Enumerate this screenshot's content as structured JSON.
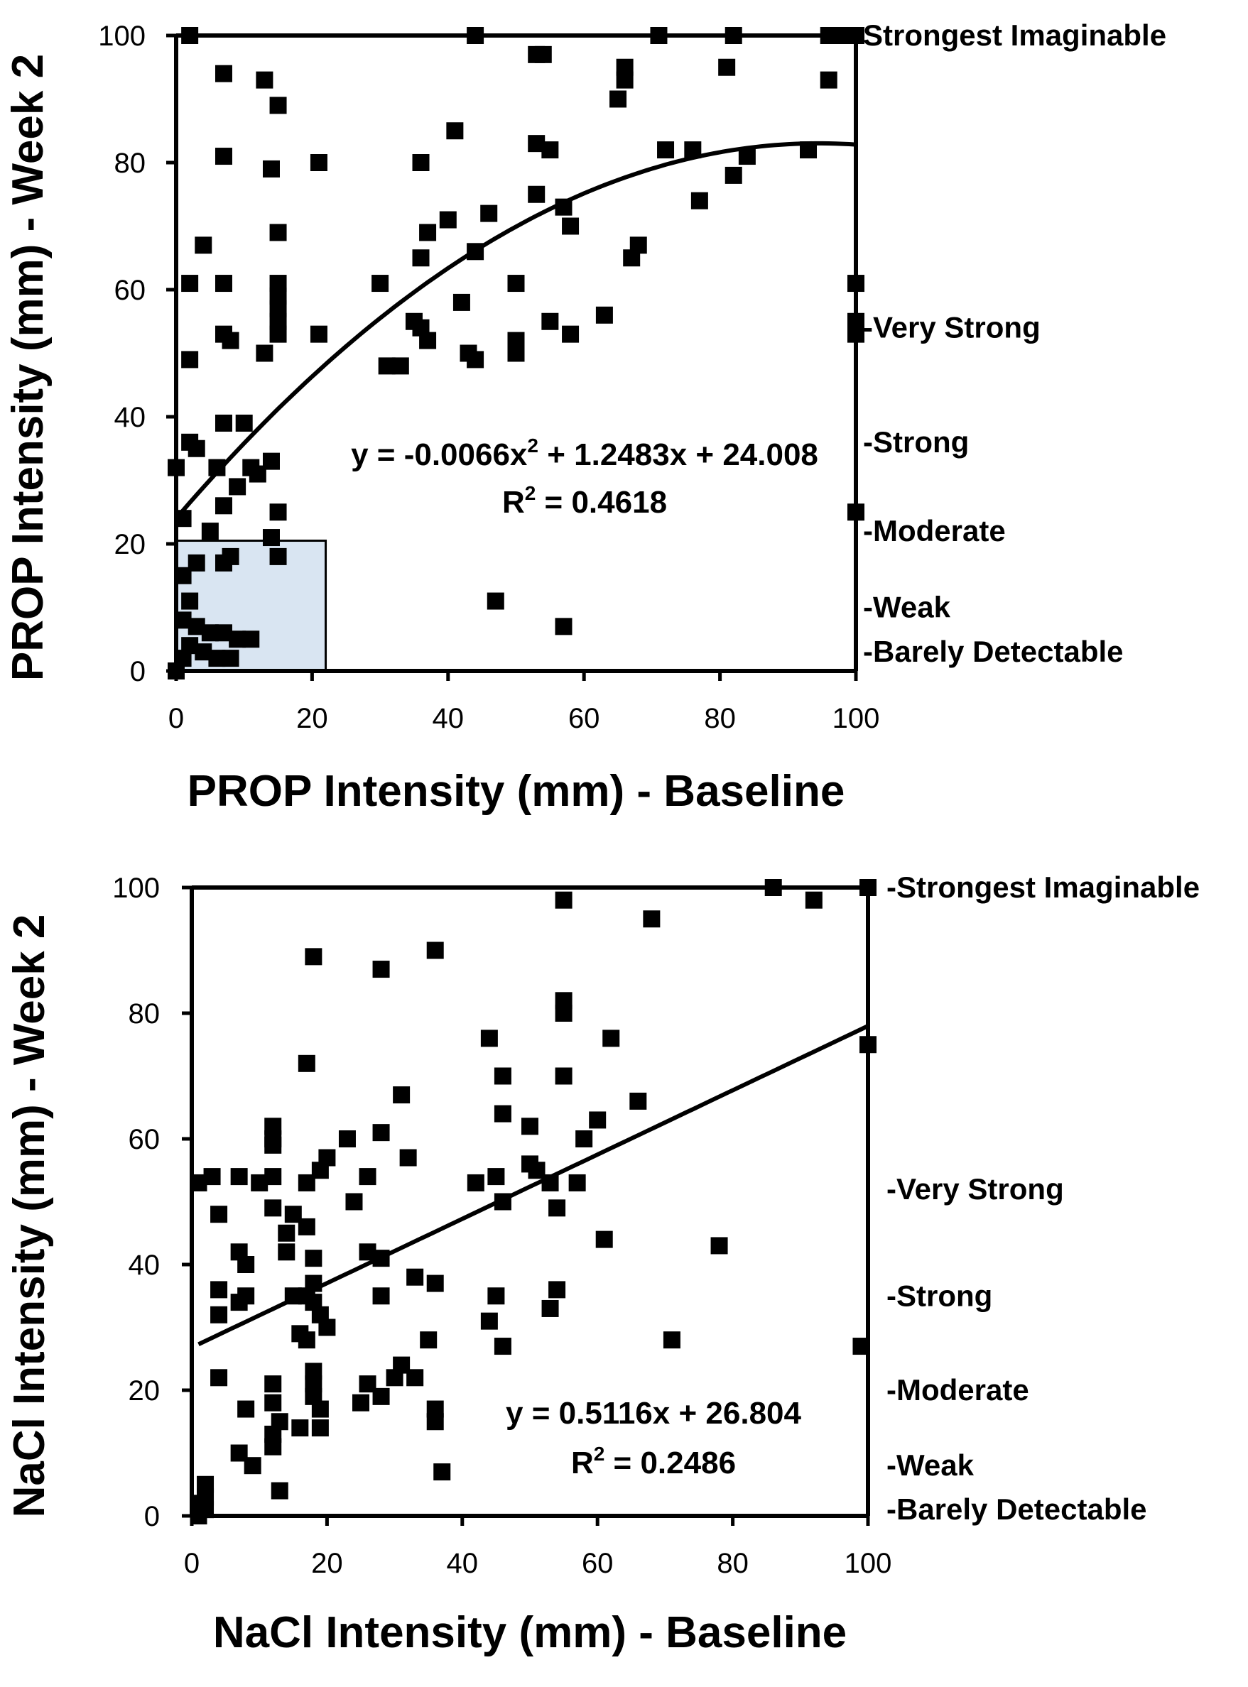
{
  "chart_data": [
    {
      "type": "scatter",
      "name": "prop",
      "xlabel": "PROP Intensity (mm) - Baseline",
      "ylabel": "PROP Intensity (mm) - Week 2",
      "xlim": [
        0,
        100
      ],
      "ylim": [
        0,
        100
      ],
      "xticks": [
        0,
        20,
        40,
        60,
        80,
        100
      ],
      "yticks": [
        0,
        20,
        40,
        60,
        80,
        100
      ],
      "grid": false,
      "highlight_region": {
        "x": [
          0,
          22
        ],
        "y": [
          0,
          20.5
        ],
        "color": "#d9e5f2"
      },
      "fit": {
        "type": "quadratic",
        "a": -0.0066,
        "b": 1.2483,
        "c": 24.008,
        "x_range": [
          0,
          100
        ]
      },
      "equation": {
        "prefix": "y = -0.0066x",
        "exp": "2",
        "suffix": " + 1.2483x + 24.008"
      },
      "r2": {
        "prefix": "R",
        "exp": "2",
        "suffix": " = 0.4618"
      },
      "right_labels": [
        {
          "label": "Strongest Imaginable",
          "y": 100
        },
        {
          "label": "-Very Strong",
          "y": 54
        },
        {
          "label": "-Strong",
          "y": 36
        },
        {
          "label": "-Moderate",
          "y": 22
        },
        {
          "label": "-Weak",
          "y": 10
        },
        {
          "label": "-Barely Detectable",
          "y": 3
        }
      ],
      "points": [
        [
          2,
          100
        ],
        [
          44,
          100
        ],
        [
          53,
          97
        ],
        [
          54,
          97
        ],
        [
          71,
          100
        ],
        [
          82,
          100
        ],
        [
          96,
          100
        ],
        [
          98,
          100
        ],
        [
          100,
          100
        ],
        [
          7,
          94
        ],
        [
          13,
          93
        ],
        [
          15,
          89
        ],
        [
          66,
          95
        ],
        [
          66,
          93
        ],
        [
          65,
          90
        ],
        [
          81,
          95
        ],
        [
          96,
          93
        ],
        [
          7,
          81
        ],
        [
          14,
          79
        ],
        [
          21,
          80
        ],
        [
          36,
          80
        ],
        [
          41,
          85
        ],
        [
          53,
          83
        ],
        [
          55,
          82
        ],
        [
          53,
          75
        ],
        [
          72,
          82
        ],
        [
          76,
          82
        ],
        [
          77,
          74
        ],
        [
          84,
          81
        ],
        [
          82,
          78
        ],
        [
          93,
          82
        ],
        [
          57,
          73
        ],
        [
          58,
          70
        ],
        [
          4,
          67
        ],
        [
          15,
          69
        ],
        [
          36,
          65
        ],
        [
          37,
          69
        ],
        [
          40,
          71
        ],
        [
          44,
          66
        ],
        [
          46,
          72
        ],
        [
          67,
          65
        ],
        [
          68,
          67
        ],
        [
          2,
          61
        ],
        [
          7,
          61
        ],
        [
          15,
          61
        ],
        [
          15,
          59
        ],
        [
          15,
          57
        ],
        [
          15,
          55
        ],
        [
          15,
          53
        ],
        [
          30,
          61
        ],
        [
          42,
          58
        ],
        [
          50,
          61
        ],
        [
          100,
          61
        ],
        [
          100,
          55
        ],
        [
          100,
          53
        ],
        [
          2,
          49
        ],
        [
          7,
          53
        ],
        [
          8,
          52
        ],
        [
          13,
          50
        ],
        [
          21,
          53
        ],
        [
          31,
          48
        ],
        [
          33,
          48
        ],
        [
          35,
          55
        ],
        [
          36,
          54
        ],
        [
          37,
          52
        ],
        [
          43,
          50
        ],
        [
          44,
          49
        ],
        [
          50,
          52
        ],
        [
          50,
          50
        ],
        [
          55,
          55
        ],
        [
          58,
          53
        ],
        [
          63,
          56
        ],
        [
          0,
          32
        ],
        [
          2,
          36
        ],
        [
          3,
          35
        ],
        [
          6,
          32
        ],
        [
          7,
          39
        ],
        [
          10,
          39
        ],
        [
          11,
          32
        ],
        [
          12,
          31
        ],
        [
          14,
          33
        ],
        [
          7,
          26
        ],
        [
          9,
          29
        ],
        [
          14,
          21
        ],
        [
          15,
          25
        ],
        [
          1,
          24
        ],
        [
          100,
          25
        ],
        [
          1,
          15
        ],
        [
          3,
          17
        ],
        [
          5,
          22
        ],
        [
          7,
          17
        ],
        [
          8,
          18
        ],
        [
          15,
          18
        ],
        [
          2,
          11
        ],
        [
          47,
          11
        ],
        [
          57,
          7
        ],
        [
          1,
          8
        ],
        [
          3,
          7
        ],
        [
          5,
          6
        ],
        [
          7,
          6
        ],
        [
          9,
          5
        ],
        [
          11,
          5
        ],
        [
          2,
          4
        ],
        [
          4,
          3
        ],
        [
          6,
          2
        ],
        [
          8,
          2
        ],
        [
          1,
          2
        ],
        [
          0,
          0
        ]
      ]
    },
    {
      "type": "scatter",
      "name": "nacl",
      "xlabel": "NaCl Intensity (mm) - Baseline",
      "ylabel": "NaCl Intensity (mm) - Week 2",
      "xlim": [
        0,
        100
      ],
      "ylim": [
        0,
        100
      ],
      "xticks": [
        0,
        20,
        40,
        60,
        80,
        100
      ],
      "yticks": [
        0,
        20,
        40,
        60,
        80,
        100
      ],
      "grid": false,
      "fit": {
        "type": "linear",
        "a": 0,
        "b": 0.5116,
        "c": 26.804,
        "x_range": [
          1,
          100
        ]
      },
      "equation": {
        "prefix": "y = 0.5116x + 26.804",
        "exp": "",
        "suffix": ""
      },
      "r2": {
        "prefix": "R",
        "exp": "2",
        "suffix": " = 0.2486"
      },
      "right_labels": [
        {
          "label": "-Strongest Imaginable",
          "y": 100
        },
        {
          "label": "-Very Strong",
          "y": 52
        },
        {
          "label": "-Strong",
          "y": 35
        },
        {
          "label": "-Moderate",
          "y": 20
        },
        {
          "label": "-Weak",
          "y": 8
        },
        {
          "label": "-Barely Detectable",
          "y": 1
        }
      ],
      "points": [
        [
          86,
          100
        ],
        [
          92,
          98
        ],
        [
          100,
          100
        ],
        [
          55,
          98
        ],
        [
          68,
          95
        ],
        [
          18,
          89
        ],
        [
          28,
          87
        ],
        [
          36,
          90
        ],
        [
          17,
          72
        ],
        [
          44,
          76
        ],
        [
          46,
          70
        ],
        [
          55,
          82
        ],
        [
          55,
          80
        ],
        [
          55,
          70
        ],
        [
          62,
          76
        ],
        [
          100,
          75
        ],
        [
          12,
          62
        ],
        [
          12,
          60
        ],
        [
          12,
          59
        ],
        [
          23,
          60
        ],
        [
          28,
          61
        ],
        [
          31,
          67
        ],
        [
          46,
          64
        ],
        [
          50,
          62
        ],
        [
          58,
          60
        ],
        [
          60,
          63
        ],
        [
          66,
          66
        ],
        [
          1,
          53
        ],
        [
          3,
          54
        ],
        [
          7,
          54
        ],
        [
          10,
          53
        ],
        [
          12,
          54
        ],
        [
          17,
          53
        ],
        [
          19,
          55
        ],
        [
          20,
          57
        ],
        [
          26,
          54
        ],
        [
          32,
          57
        ],
        [
          42,
          53
        ],
        [
          45,
          54
        ],
        [
          50,
          56
        ],
        [
          51,
          55
        ],
        [
          53,
          53
        ],
        [
          57,
          53
        ],
        [
          4,
          48
        ],
        [
          12,
          49
        ],
        [
          15,
          48
        ],
        [
          14,
          45
        ],
        [
          18,
          41
        ],
        [
          17,
          46
        ],
        [
          24,
          50
        ],
        [
          46,
          50
        ],
        [
          54,
          49
        ],
        [
          7,
          42
        ],
        [
          8,
          40
        ],
        [
          14,
          42
        ],
        [
          26,
          42
        ],
        [
          28,
          41
        ],
        [
          33,
          38
        ],
        [
          36,
          37
        ],
        [
          61,
          44
        ],
        [
          78,
          43
        ],
        [
          4,
          36
        ],
        [
          4,
          32
        ],
        [
          7,
          34
        ],
        [
          8,
          35
        ],
        [
          15,
          35
        ],
        [
          17,
          35
        ],
        [
          18,
          37
        ],
        [
          18,
          34
        ],
        [
          19,
          32
        ],
        [
          20,
          30
        ],
        [
          28,
          35
        ],
        [
          35,
          28
        ],
        [
          45,
          35
        ],
        [
          44,
          31
        ],
        [
          46,
          27
        ],
        [
          53,
          33
        ],
        [
          54,
          36
        ],
        [
          71,
          28
        ],
        [
          99,
          27
        ],
        [
          4,
          22
        ],
        [
          8,
          17
        ],
        [
          12,
          21
        ],
        [
          12,
          18
        ],
        [
          16,
          29
        ],
        [
          17,
          28
        ],
        [
          18,
          23
        ],
        [
          18,
          21
        ],
        [
          18,
          19
        ],
        [
          19,
          17
        ],
        [
          16,
          14
        ],
        [
          19,
          14
        ],
        [
          25,
          18
        ],
        [
          26,
          21
        ],
        [
          28,
          19
        ],
        [
          30,
          22
        ],
        [
          31,
          24
        ],
        [
          33,
          22
        ],
        [
          36,
          17
        ],
        [
          36,
          15
        ],
        [
          7,
          10
        ],
        [
          9,
          8
        ],
        [
          12,
          13
        ],
        [
          12,
          11
        ],
        [
          13,
          15
        ],
        [
          13,
          4
        ],
        [
          37,
          7
        ],
        [
          2,
          5
        ],
        [
          2,
          3
        ],
        [
          1,
          2
        ],
        [
          2,
          1
        ],
        [
          1,
          0
        ]
      ]
    }
  ]
}
